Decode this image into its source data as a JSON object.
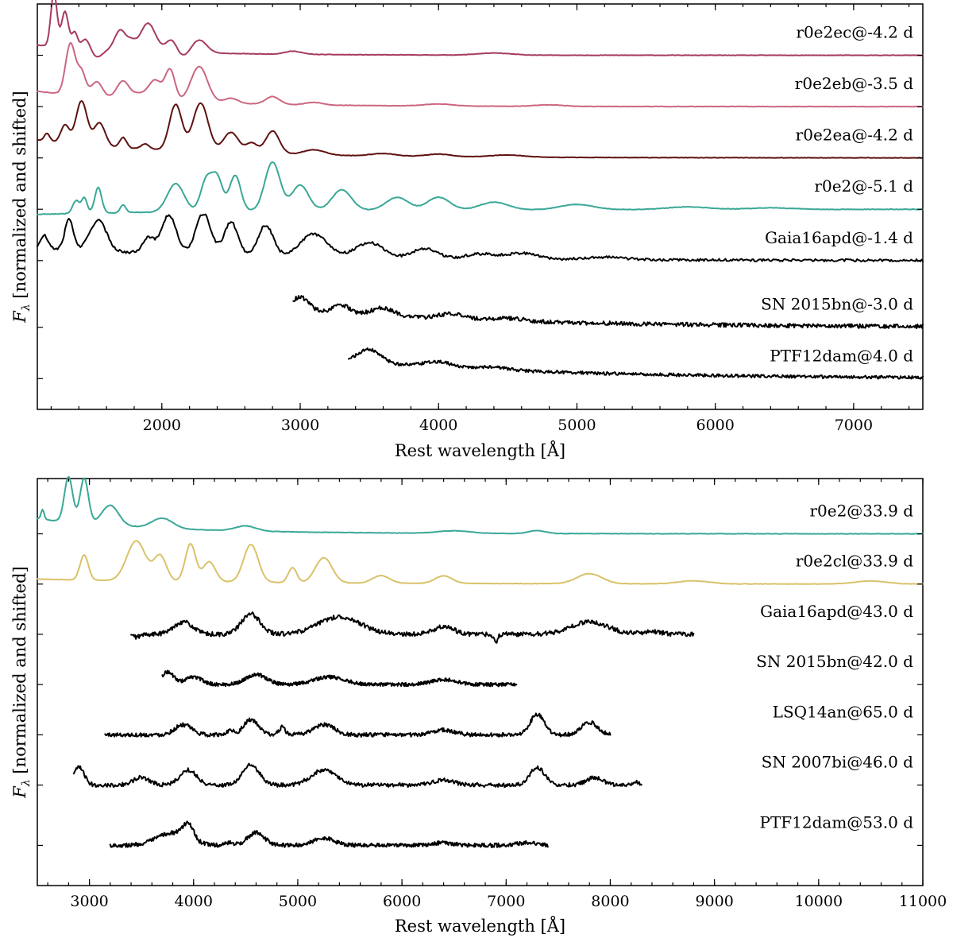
{
  "chart_data": [
    {
      "type": "line",
      "panel": "top",
      "xlabel": "Rest wavelength [Å]",
      "ylabel": "Fλ [normalized and shifted]",
      "ylabel_main": "F",
      "ylabel_sub": "λ",
      "ylabel_rest": " [normalized and shifted]",
      "xlim": [
        1100,
        7500
      ],
      "xticks": [
        2000,
        3000,
        4000,
        5000,
        6000,
        7000
      ],
      "grid": false,
      "series": [
        {
          "name": "r0e2ec@-4.2 d",
          "color": "#a63a62",
          "xrange": [
            1100,
            7500
          ],
          "level": 6.8,
          "noise": 0.004,
          "features": [
            [
              1220,
              1.05,
              22
            ],
            [
              1300,
              0.7,
              25
            ],
            [
              1370,
              0.3,
              20
            ],
            [
              1450,
              0.2,
              30
            ],
            [
              1530,
              -0.15,
              40
            ],
            [
              1700,
              0.4,
              40
            ],
            [
              1780,
              0.15,
              30
            ],
            [
              1900,
              0.55,
              55
            ],
            [
              2070,
              0.25,
              40
            ],
            [
              2150,
              -0.1,
              45
            ],
            [
              2270,
              0.25,
              55
            ],
            [
              2950,
              0.06,
              60
            ],
            [
              4400,
              0.04,
              120
            ]
          ],
          "decay": [
            0.2,
            800
          ]
        },
        {
          "name": "r0e2eb@-3.5 d",
          "color": "#cc6680",
          "xrange": [
            1100,
            7500
          ],
          "level": 5.8,
          "noise": 0.004,
          "features": [
            [
              1340,
              1.0,
              35
            ],
            [
              1420,
              0.45,
              30
            ],
            [
              1530,
              0.3,
              40
            ],
            [
              1720,
              0.35,
              45
            ],
            [
              1830,
              0.1,
              40
            ],
            [
              1950,
              0.4,
              50
            ],
            [
              2060,
              0.6,
              35
            ],
            [
              2270,
              0.7,
              60
            ],
            [
              2500,
              0.1,
              50
            ],
            [
              2800,
              0.15,
              50
            ],
            [
              3100,
              0.05,
              60
            ],
            [
              4000,
              0.04,
              100
            ],
            [
              4800,
              0.03,
              100
            ]
          ],
          "decay": [
            0.3,
            900
          ]
        },
        {
          "name": "r0e2ea@-4.2 d",
          "color": "#5e1210",
          "xrange": [
            1100,
            7500
          ],
          "level": 4.8,
          "noise": 0.004,
          "features": [
            [
              1170,
              0.15,
              20
            ],
            [
              1300,
              0.35,
              30
            ],
            [
              1420,
              0.85,
              40
            ],
            [
              1550,
              0.45,
              40
            ],
            [
              1720,
              0.2,
              25
            ],
            [
              1880,
              0.1,
              30
            ],
            [
              2100,
              0.9,
              45
            ],
            [
              2280,
              0.95,
              55
            ],
            [
              2500,
              0.4,
              55
            ],
            [
              2650,
              0.2,
              40
            ],
            [
              2800,
              0.45,
              50
            ],
            [
              3100,
              0.1,
              80
            ],
            [
              3600,
              0.05,
              90
            ],
            [
              4000,
              0.05,
              90
            ],
            [
              4500,
              0.04,
              120
            ]
          ],
          "decay": [
            0.35,
            1100
          ]
        },
        {
          "name": "r0e2@-5.1 d",
          "color": "#3aa896",
          "xrange": [
            1100,
            7500
          ],
          "level": 3.8,
          "noise": 0.005,
          "features": [
            [
              1380,
              0.25,
              25
            ],
            [
              1440,
              0.3,
              20
            ],
            [
              1540,
              0.5,
              25
            ],
            [
              1720,
              0.15,
              20
            ],
            [
              2100,
              0.55,
              60
            ],
            [
              2320,
              0.6,
              40
            ],
            [
              2400,
              0.65,
              40
            ],
            [
              2530,
              0.7,
              40
            ],
            [
              2800,
              0.95,
              55
            ],
            [
              3000,
              0.5,
              60
            ],
            [
              3300,
              0.4,
              70
            ],
            [
              3700,
              0.25,
              80
            ],
            [
              4000,
              0.25,
              80
            ],
            [
              4400,
              0.15,
              100
            ],
            [
              5000,
              0.1,
              120
            ],
            [
              5800,
              0.05,
              150
            ],
            [
              6400,
              0.03,
              150
            ]
          ],
          "decay": [
            -0.1,
            1500
          ]
        },
        {
          "name": "Gaia16apd@-1.4 d",
          "color": "#000000",
          "xrange": [
            1100,
            7500
          ],
          "level": 2.8,
          "noise": 0.025,
          "features": [
            [
              1150,
              0.25,
              25
            ],
            [
              1330,
              0.6,
              30
            ],
            [
              1540,
              0.6,
              60
            ],
            [
              1900,
              0.3,
              40
            ],
            [
              2050,
              0.75,
              55
            ],
            [
              2300,
              0.8,
              55
            ],
            [
              2500,
              0.65,
              50
            ],
            [
              2750,
              0.6,
              55
            ],
            [
              3100,
              0.45,
              100
            ],
            [
              3500,
              0.3,
              100
            ],
            [
              3900,
              0.2,
              90
            ],
            [
              4300,
              0.1,
              100
            ],
            [
              4600,
              0.12,
              120
            ],
            [
              5200,
              0.05,
              150
            ]
          ],
          "decay": [
            0.25,
            1500
          ]
        },
        {
          "name": "SN 2015bn@-3.0 d",
          "color": "#000000",
          "xrange": [
            2950,
            7500
          ],
          "level": 1.5,
          "noise": 0.04,
          "features": [
            [
              3000,
              0.25,
              60
            ],
            [
              3300,
              0.15,
              60
            ],
            [
              3600,
              0.15,
              80
            ],
            [
              4100,
              0.1,
              100
            ],
            [
              4500,
              0.05,
              120
            ]
          ],
          "decay": [
            0.35,
            1500
          ]
        },
        {
          "name": "PTF12dam@4.0 d",
          "color": "#000000",
          "xrange": [
            3350,
            7500
          ],
          "level": 0.5,
          "noise": 0.03,
          "features": [
            [
              3500,
              0.25,
              80
            ],
            [
              4000,
              0.1,
              100
            ],
            [
              4400,
              0.05,
              100
            ]
          ],
          "decay": [
            0.35,
            1500
          ]
        }
      ]
    },
    {
      "type": "line",
      "panel": "bottom",
      "xlabel": "Rest wavelength [Å]",
      "ylabel": "Fλ [normalized and shifted]",
      "ylabel_main": "F",
      "ylabel_sub": "λ",
      "ylabel_rest": " [normalized and shifted]",
      "xlim": [
        2500,
        11000
      ],
      "xticks": [
        3000,
        4000,
        5000,
        6000,
        7000,
        8000,
        9000,
        10000,
        11000
      ],
      "grid": false,
      "series": [
        {
          "name": "r0e2@33.9 d",
          "color": "#3aa896",
          "xrange": [
            2500,
            11000
          ],
          "level": 6.8,
          "noise": 0.004,
          "features": [
            [
              2550,
              0.2,
              15
            ],
            [
              2800,
              0.9,
              40
            ],
            [
              2950,
              0.9,
              40
            ],
            [
              3200,
              0.4,
              80
            ],
            [
              3700,
              0.2,
              100
            ],
            [
              4500,
              0.1,
              100
            ],
            [
              6500,
              0.05,
              150
            ],
            [
              7300,
              0.06,
              80
            ]
          ],
          "decay": [
            0.3,
            1200
          ]
        },
        {
          "name": "r0e2cl@33.9 d",
          "color": "#d9c26a",
          "xrange": [
            2500,
            11000
          ],
          "level": 5.8,
          "noise": 0.004,
          "features": [
            [
              2950,
              0.5,
              40
            ],
            [
              3450,
              0.8,
              90
            ],
            [
              3680,
              0.5,
              60
            ],
            [
              3970,
              0.75,
              50
            ],
            [
              4150,
              0.4,
              60
            ],
            [
              4550,
              0.75,
              70
            ],
            [
              4950,
              0.3,
              40
            ],
            [
              5250,
              0.5,
              80
            ],
            [
              5800,
              0.15,
              80
            ],
            [
              6400,
              0.15,
              80
            ],
            [
              7800,
              0.2,
              120
            ],
            [
              8800,
              0.06,
              150
            ],
            [
              10500,
              0.06,
              150
            ]
          ],
          "decay": [
            0.1,
            2000
          ]
        },
        {
          "name": "Gaia16apd@43.0 d",
          "color": "#000000",
          "xrange": [
            3400,
            8800
          ],
          "level": 4.8,
          "noise": 0.045,
          "features": [
            [
              3450,
              -0.05,
              40
            ],
            [
              3900,
              0.25,
              90
            ],
            [
              4550,
              0.4,
              90
            ],
            [
              5400,
              0.35,
              200
            ],
            [
              6400,
              0.15,
              100
            ],
            [
              6900,
              -0.15,
              20
            ],
            [
              7800,
              0.25,
              180
            ],
            [
              8400,
              0.05,
              100
            ]
          ],
          "decay": [
            0.0,
            2000
          ]
        },
        {
          "name": "SN 2015bn@42.0 d",
          "color": "#000000",
          "xrange": [
            3700,
            7100
          ],
          "level": 3.8,
          "noise": 0.035,
          "features": [
            [
              3750,
              0.25,
              60
            ],
            [
              4000,
              0.15,
              80
            ],
            [
              4600,
              0.2,
              100
            ],
            [
              5300,
              0.15,
              150
            ],
            [
              6400,
              0.1,
              120
            ]
          ],
          "decay": [
            0.0,
            2000
          ]
        },
        {
          "name": "LSQ14an@65.0 d",
          "color": "#000000",
          "xrange": [
            3150,
            8000
          ],
          "level": 2.8,
          "noise": 0.04,
          "features": [
            [
              3900,
              0.2,
              80
            ],
            [
              4350,
              0.1,
              30
            ],
            [
              4550,
              0.3,
              70
            ],
            [
              4850,
              0.15,
              30
            ],
            [
              5250,
              0.2,
              100
            ],
            [
              6400,
              0.1,
              100
            ],
            [
              7300,
              0.4,
              70
            ],
            [
              7800,
              0.25,
              80
            ]
          ],
          "decay": [
            0.0,
            2000
          ]
        },
        {
          "name": "SN 2007bi@46.0 d",
          "color": "#000000",
          "xrange": [
            2850,
            8300
          ],
          "level": 1.8,
          "noise": 0.04,
          "features": [
            [
              2900,
              0.35,
              50
            ],
            [
              3500,
              0.15,
              80
            ],
            [
              3950,
              0.3,
              80
            ],
            [
              4550,
              0.4,
              80
            ],
            [
              5250,
              0.3,
              120
            ],
            [
              6400,
              0.1,
              100
            ],
            [
              7300,
              0.35,
              70
            ],
            [
              7850,
              0.15,
              80
            ],
            [
              8250,
              0.05,
              50
            ]
          ],
          "decay": [
            0.0,
            2000
          ]
        },
        {
          "name": "PTF12dam@53.0 d",
          "color": "#000000",
          "xrange": [
            3200,
            7400
          ],
          "level": 0.6,
          "noise": 0.04,
          "features": [
            [
              3800,
              0.25,
              150
            ],
            [
              3950,
              0.3,
              50
            ],
            [
              4350,
              0.05,
              40
            ],
            [
              4600,
              0.25,
              80
            ],
            [
              5250,
              0.15,
              100
            ],
            [
              6400,
              0.05,
              100
            ],
            [
              7200,
              0.05,
              100
            ]
          ],
          "decay": [
            0.0,
            2000
          ]
        }
      ]
    }
  ]
}
